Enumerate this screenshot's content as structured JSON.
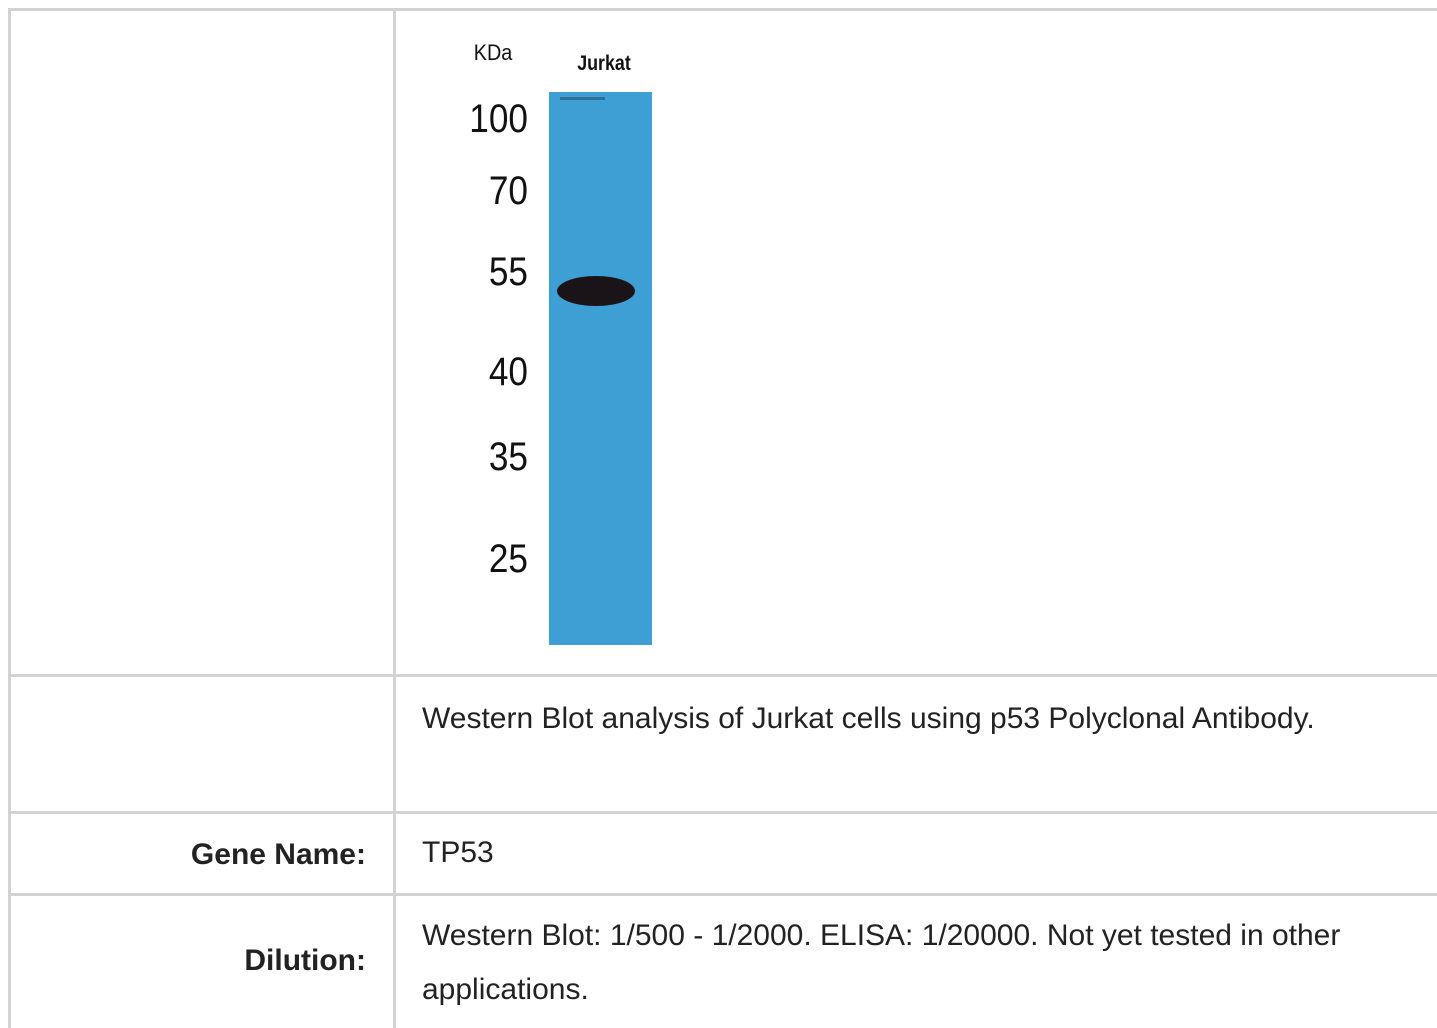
{
  "blot": {
    "unit_label": "KDa",
    "lane_label": "Jurkat",
    "markers": [
      100,
      70,
      55,
      40,
      35,
      25
    ]
  },
  "caption": "Western Blot analysis of Jurkat cells using p53 Polyclonal Antibody.",
  "rows": [
    {
      "label": "Gene Name:",
      "value": "TP53"
    },
    {
      "label": "Dilution:",
      "value": "Western Blot: 1/500 - 1/2000. ELISA: 1/20000. Not yet tested in other applications."
    }
  ]
}
